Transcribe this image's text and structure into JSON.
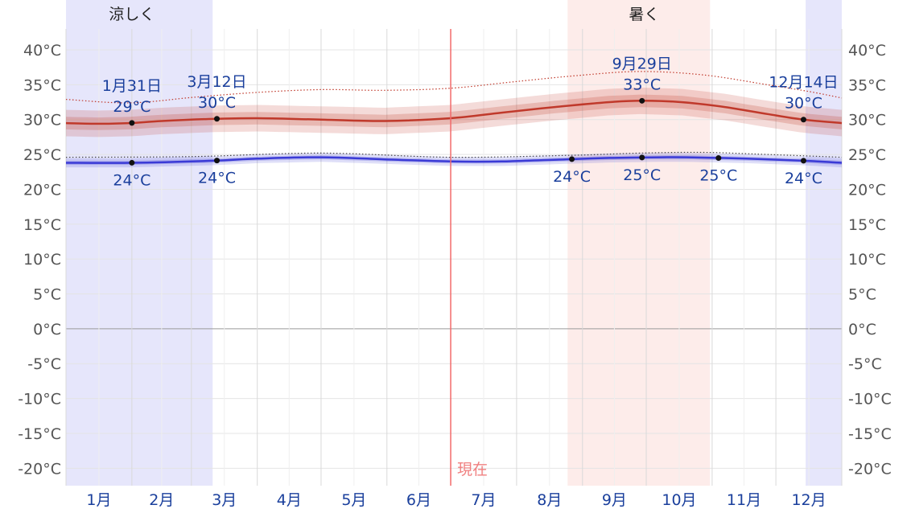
{
  "chart_data": {
    "type": "line",
    "y_range": [
      -22.5,
      43
    ],
    "y_ticks": [
      40,
      35,
      30,
      25,
      20,
      15,
      10,
      5,
      0,
      -5,
      -10,
      -15,
      -20
    ],
    "y_unit": "°C",
    "x_range_day": [
      0,
      365
    ],
    "months": [
      "1月",
      "2月",
      "3月",
      "4月",
      "5月",
      "6月",
      "7月",
      "8月",
      "9月",
      "10月",
      "11月",
      "12月"
    ],
    "seasons": [
      {
        "label": "涼しく",
        "start_day": 0,
        "end_day": 69,
        "color": "#e6e6fb",
        "label_day": 31
      },
      {
        "label": "",
        "start_day": 348,
        "end_day": 365,
        "color": "#e6e6fb",
        "label_day": null
      },
      {
        "label": "暑く",
        "start_day": 236,
        "end_day": 303,
        "color": "#fdecea",
        "label_day": 272
      }
    ],
    "now": {
      "label": "現在",
      "day": 181
    },
    "series": [
      {
        "role": "high",
        "color": "#c0392b",
        "points": [
          [
            0,
            29.5
          ],
          [
            15,
            29.4
          ],
          [
            30,
            29.5
          ],
          [
            45,
            29.8
          ],
          [
            69,
            30.1
          ],
          [
            90,
            30.2
          ],
          [
            120,
            30.0
          ],
          [
            150,
            29.8
          ],
          [
            181,
            30.2
          ],
          [
            205,
            31.0
          ],
          [
            230,
            31.8
          ],
          [
            255,
            32.5
          ],
          [
            271,
            32.7
          ],
          [
            290,
            32.5
          ],
          [
            310,
            31.8
          ],
          [
            330,
            30.8
          ],
          [
            347,
            30.0
          ],
          [
            365,
            29.5
          ]
        ]
      },
      {
        "role": "low",
        "color": "#3a3ad6",
        "points": [
          [
            0,
            23.8
          ],
          [
            30,
            23.8
          ],
          [
            69,
            24.1
          ],
          [
            90,
            24.4
          ],
          [
            120,
            24.6
          ],
          [
            150,
            24.3
          ],
          [
            181,
            24.0
          ],
          [
            205,
            24.0
          ],
          [
            235,
            24.3
          ],
          [
            256,
            24.5
          ],
          [
            280,
            24.6
          ],
          [
            292,
            24.6
          ],
          [
            320,
            24.4
          ],
          [
            347,
            24.1
          ],
          [
            365,
            23.8
          ]
        ]
      },
      {
        "role": "high-percentile-90",
        "color": "#c0392b",
        "points": [
          [
            0,
            32.9
          ],
          [
            30,
            32.4
          ],
          [
            60,
            33.2
          ],
          [
            90,
            33.9
          ],
          [
            120,
            34.3
          ],
          [
            150,
            34.2
          ],
          [
            181,
            34.5
          ],
          [
            210,
            35.4
          ],
          [
            240,
            36.3
          ],
          [
            270,
            36.9
          ],
          [
            300,
            36.4
          ],
          [
            330,
            35.0
          ],
          [
            350,
            34.0
          ],
          [
            365,
            33.1
          ]
        ]
      },
      {
        "role": "low-percentile-90",
        "color": "#444444",
        "points": [
          [
            0,
            24.6
          ],
          [
            60,
            24.7
          ],
          [
            120,
            25.2
          ],
          [
            181,
            24.6
          ],
          [
            240,
            24.9
          ],
          [
            270,
            25.2
          ],
          [
            300,
            25.3
          ],
          [
            330,
            25.0
          ],
          [
            365,
            24.6
          ]
        ]
      }
    ],
    "markers": [
      {
        "day": 31,
        "value": 29,
        "label": "29°C",
        "date": "1月31日",
        "series": "high"
      },
      {
        "day": 71,
        "value": 30,
        "label": "30°C",
        "date": "3月12日",
        "series": "high"
      },
      {
        "day": 271,
        "value": 33,
        "label": "33°C",
        "date": "9月29日",
        "series": "high"
      },
      {
        "day": 347,
        "value": 30,
        "label": "30°C",
        "date": "12月14日",
        "series": "high"
      },
      {
        "day": 31,
        "value": 24,
        "label": "24°C",
        "date": "",
        "series": "low"
      },
      {
        "day": 71,
        "value": 24,
        "label": "24°C",
        "date": "",
        "series": "low"
      },
      {
        "day": 238,
        "value": 24,
        "label": "24°C",
        "date": "",
        "series": "low"
      },
      {
        "day": 271,
        "value": 25,
        "label": "25°C",
        "date": "",
        "series": "low"
      },
      {
        "day": 307,
        "value": 25,
        "label": "25°C",
        "date": "",
        "series": "low"
      },
      {
        "day": 347,
        "value": 24,
        "label": "24°C",
        "date": "",
        "series": "low"
      }
    ],
    "grid": true,
    "legend": "none"
  }
}
